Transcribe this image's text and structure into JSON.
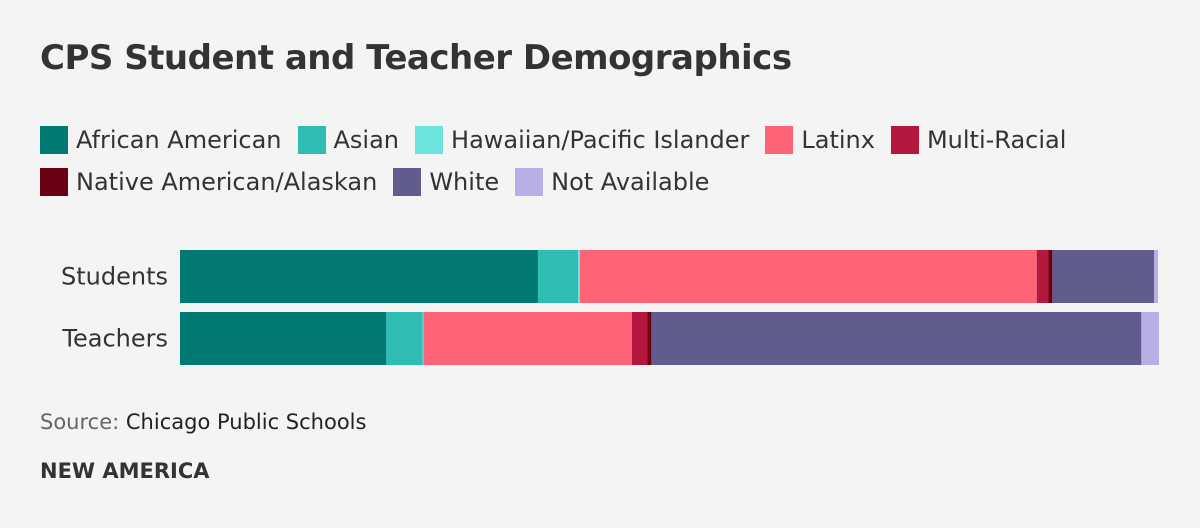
{
  "chart_data": {
    "type": "stacked-bar-horizontal",
    "title": "CPS Student and Teacher Demographics",
    "categories": [
      "Students",
      "Teachers"
    ],
    "xlim": [
      0,
      100
    ],
    "series": [
      {
        "name": "African American",
        "color": "#007a72",
        "values": [
          36.6,
          21.1
        ]
      },
      {
        "name": "Asian",
        "color": "#2ebcb3",
        "values": [
          4.1,
          3.7
        ]
      },
      {
        "name": "Hawaiian/Pacific Islander",
        "color": "#6be4dd",
        "values": [
          0.2,
          0.1
        ]
      },
      {
        "name": "Latinx",
        "color": "#ff6377",
        "values": [
          46.7,
          21.3
        ]
      },
      {
        "name": "Multi-Racial",
        "color": "#b5183f",
        "values": [
          1.2,
          1.6
        ]
      },
      {
        "name": "Native American/Alaskan",
        "color": "#6b0012",
        "values": [
          0.4,
          0.4
        ]
      },
      {
        "name": "White",
        "color": "#615c8e",
        "values": [
          10.4,
          50.1
        ]
      },
      {
        "name": "Not Available",
        "color": "#b8afe6",
        "values": [
          0.4,
          1.8
        ]
      }
    ],
    "source_label": "Source:",
    "source": "Chicago Public Schools",
    "footer": "NEW AMERICA"
  }
}
